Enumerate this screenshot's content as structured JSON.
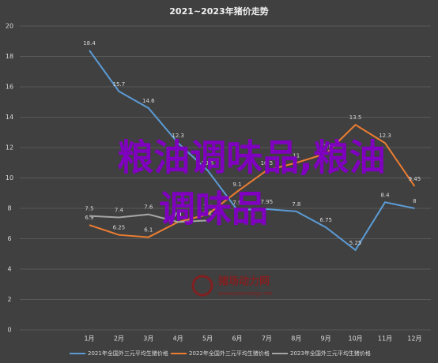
{
  "chart_data": {
    "type": "line",
    "title": "2021~2023年猪价走势",
    "categories": [
      "1月",
      "2月",
      "3月",
      "4月",
      "5月",
      "6月",
      "7月",
      "8月",
      "9月",
      "10月",
      "11月",
      "12月"
    ],
    "series": [
      {
        "name": "2021年全国外三元平均生猪价格",
        "color": "#5b9bd5",
        "values": [
          18.4,
          15.7,
          14.6,
          12.3,
          10.5,
          7.9,
          7.95,
          7.8,
          6.75,
          5.25,
          8.4,
          8
        ]
      },
      {
        "name": "2022年全国外三元平均生猪价格",
        "color": "#ed7d31",
        "values": [
          6.9,
          6.25,
          6.1,
          7.1,
          7.6,
          9.1,
          10.5,
          11,
          11.6,
          13.5,
          12.3,
          9.45
        ]
      },
      {
        "name": "2023年全国外三元平均生猪价格",
        "color": "#a5a5a5",
        "values": [
          7.5,
          7.4,
          7.6,
          7.1,
          7.2,
          null,
          null,
          null,
          null,
          null,
          null,
          null
        ]
      }
    ],
    "ylim": [
      0,
      20
    ],
    "yticks": [
      0,
      2,
      4,
      6,
      8,
      10,
      12,
      14,
      16,
      18,
      20
    ],
    "grid": true
  },
  "overlay": [
    "粮油调味品,粮油",
    "调味品"
  ],
  "watermark": {
    "name": "猪场动力网",
    "url": "www.powerpigs.net"
  }
}
